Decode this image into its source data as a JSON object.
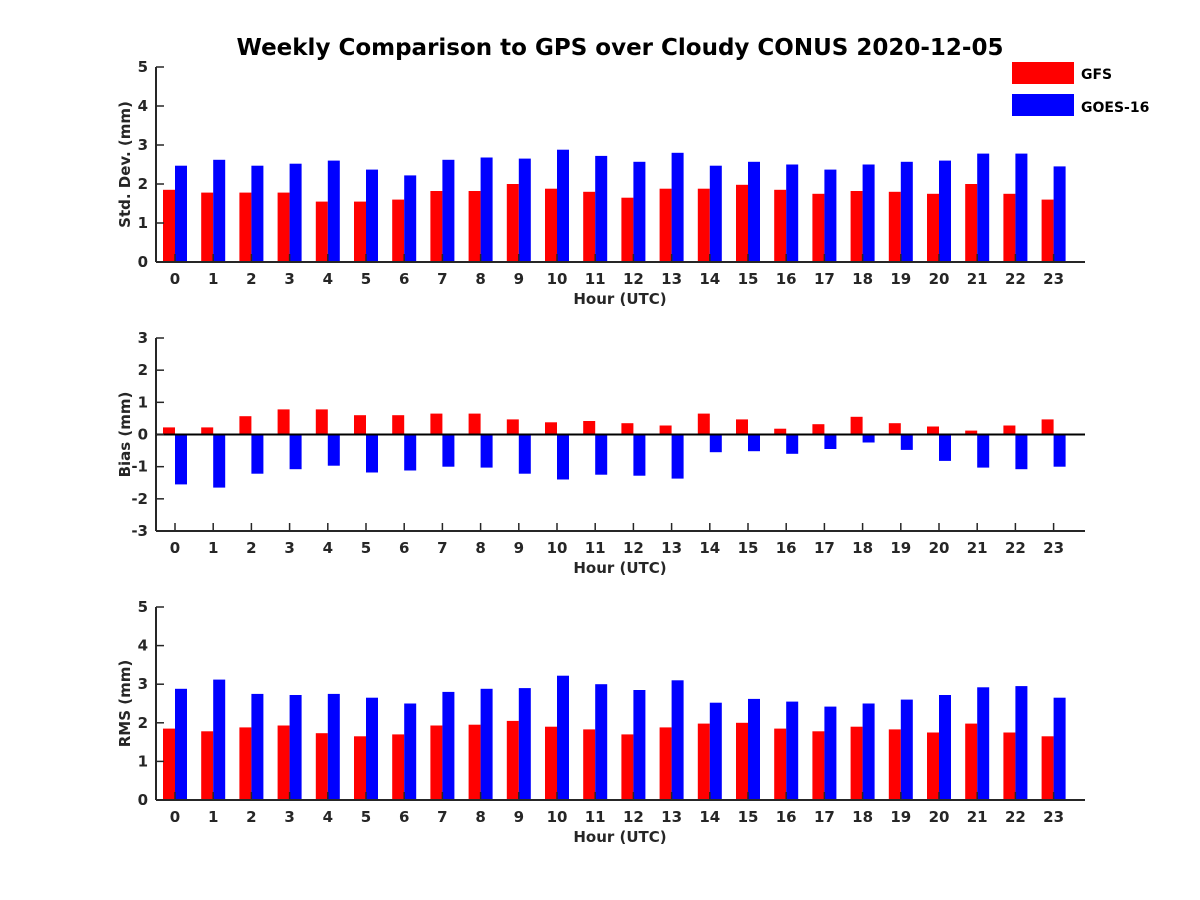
{
  "figure": {
    "title": "Weekly Comparison to GPS over Cloudy CONUS 2020-12-05"
  },
  "legend": {
    "placement": "top-right",
    "entries": [
      {
        "label": "GFS",
        "color": "#ff0000"
      },
      {
        "label": "GOES-16",
        "color": "#0000ff"
      }
    ]
  },
  "chart_data": [
    {
      "type": "bar",
      "title": "",
      "xlabel": "Hour (UTC)",
      "ylabel": "Std. Dev. (mm)",
      "ylim": [
        0,
        5
      ],
      "yticks": [
        0,
        1,
        2,
        3,
        4,
        5
      ],
      "grid": false,
      "categories": [
        "0",
        "1",
        "2",
        "3",
        "4",
        "5",
        "6",
        "7",
        "8",
        "9",
        "10",
        "11",
        "12",
        "13",
        "14",
        "15",
        "16",
        "17",
        "18",
        "19",
        "20",
        "21",
        "22",
        "23"
      ],
      "series": [
        {
          "name": "GFS",
          "color": "#ff0000",
          "values": [
            1.85,
            1.78,
            1.78,
            1.78,
            1.55,
            1.55,
            1.6,
            1.82,
            1.82,
            2.0,
            1.88,
            1.8,
            1.65,
            1.88,
            1.88,
            1.98,
            1.85,
            1.75,
            1.82,
            1.8,
            1.75,
            2.0,
            1.75,
            1.6
          ]
        },
        {
          "name": "GOES-16",
          "color": "#0000ff",
          "values": [
            2.47,
            2.62,
            2.47,
            2.52,
            2.6,
            2.37,
            2.22,
            2.62,
            2.68,
            2.65,
            2.88,
            2.72,
            2.57,
            2.8,
            2.47,
            2.57,
            2.5,
            2.37,
            2.5,
            2.57,
            2.6,
            2.78,
            2.78,
            2.45
          ]
        }
      ]
    },
    {
      "type": "bar",
      "title": "",
      "xlabel": "Hour (UTC)",
      "ylabel": "Bias (mm)",
      "ylim": [
        -3,
        3
      ],
      "yticks": [
        -3,
        -2,
        -1,
        0,
        1,
        2,
        3
      ],
      "grid": false,
      "categories": [
        "0",
        "1",
        "2",
        "3",
        "4",
        "5",
        "6",
        "7",
        "8",
        "9",
        "10",
        "11",
        "12",
        "13",
        "14",
        "15",
        "16",
        "17",
        "18",
        "19",
        "20",
        "21",
        "22",
        "23"
      ],
      "series": [
        {
          "name": "GFS",
          "color": "#ff0000",
          "values": [
            0.22,
            0.22,
            0.57,
            0.78,
            0.78,
            0.6,
            0.6,
            0.65,
            0.65,
            0.47,
            0.38,
            0.42,
            0.35,
            0.28,
            0.65,
            0.47,
            0.18,
            0.32,
            0.55,
            0.35,
            0.25,
            0.12,
            0.28,
            0.47
          ]
        },
        {
          "name": "GOES-16",
          "color": "#0000ff",
          "values": [
            -1.55,
            -1.65,
            -1.22,
            -1.08,
            -0.97,
            -1.18,
            -1.12,
            -1.0,
            -1.03,
            -1.22,
            -1.4,
            -1.25,
            -1.28,
            -1.37,
            -0.55,
            -0.52,
            -0.6,
            -0.45,
            -0.25,
            -0.48,
            -0.82,
            -1.03,
            -1.08,
            -1.0
          ]
        }
      ]
    },
    {
      "type": "bar",
      "title": "",
      "xlabel": "Hour (UTC)",
      "ylabel": "RMS (mm)",
      "ylim": [
        0,
        5
      ],
      "yticks": [
        0,
        1,
        2,
        3,
        4,
        5
      ],
      "grid": false,
      "categories": [
        "0",
        "1",
        "2",
        "3",
        "4",
        "5",
        "6",
        "7",
        "8",
        "9",
        "10",
        "11",
        "12",
        "13",
        "14",
        "15",
        "16",
        "17",
        "18",
        "19",
        "20",
        "21",
        "22",
        "23"
      ],
      "series": [
        {
          "name": "GFS",
          "color": "#ff0000",
          "values": [
            1.85,
            1.78,
            1.88,
            1.93,
            1.73,
            1.65,
            1.7,
            1.93,
            1.95,
            2.05,
            1.9,
            1.83,
            1.7,
            1.88,
            1.98,
            2.0,
            1.85,
            1.78,
            1.9,
            1.83,
            1.75,
            1.98,
            1.75,
            1.65
          ]
        },
        {
          "name": "GOES-16",
          "color": "#0000ff",
          "values": [
            2.88,
            3.12,
            2.75,
            2.72,
            2.75,
            2.65,
            2.5,
            2.8,
            2.88,
            2.9,
            3.22,
            3.0,
            2.85,
            3.1,
            2.52,
            2.62,
            2.55,
            2.42,
            2.5,
            2.6,
            2.72,
            2.92,
            2.95,
            2.65
          ]
        }
      ]
    }
  ]
}
